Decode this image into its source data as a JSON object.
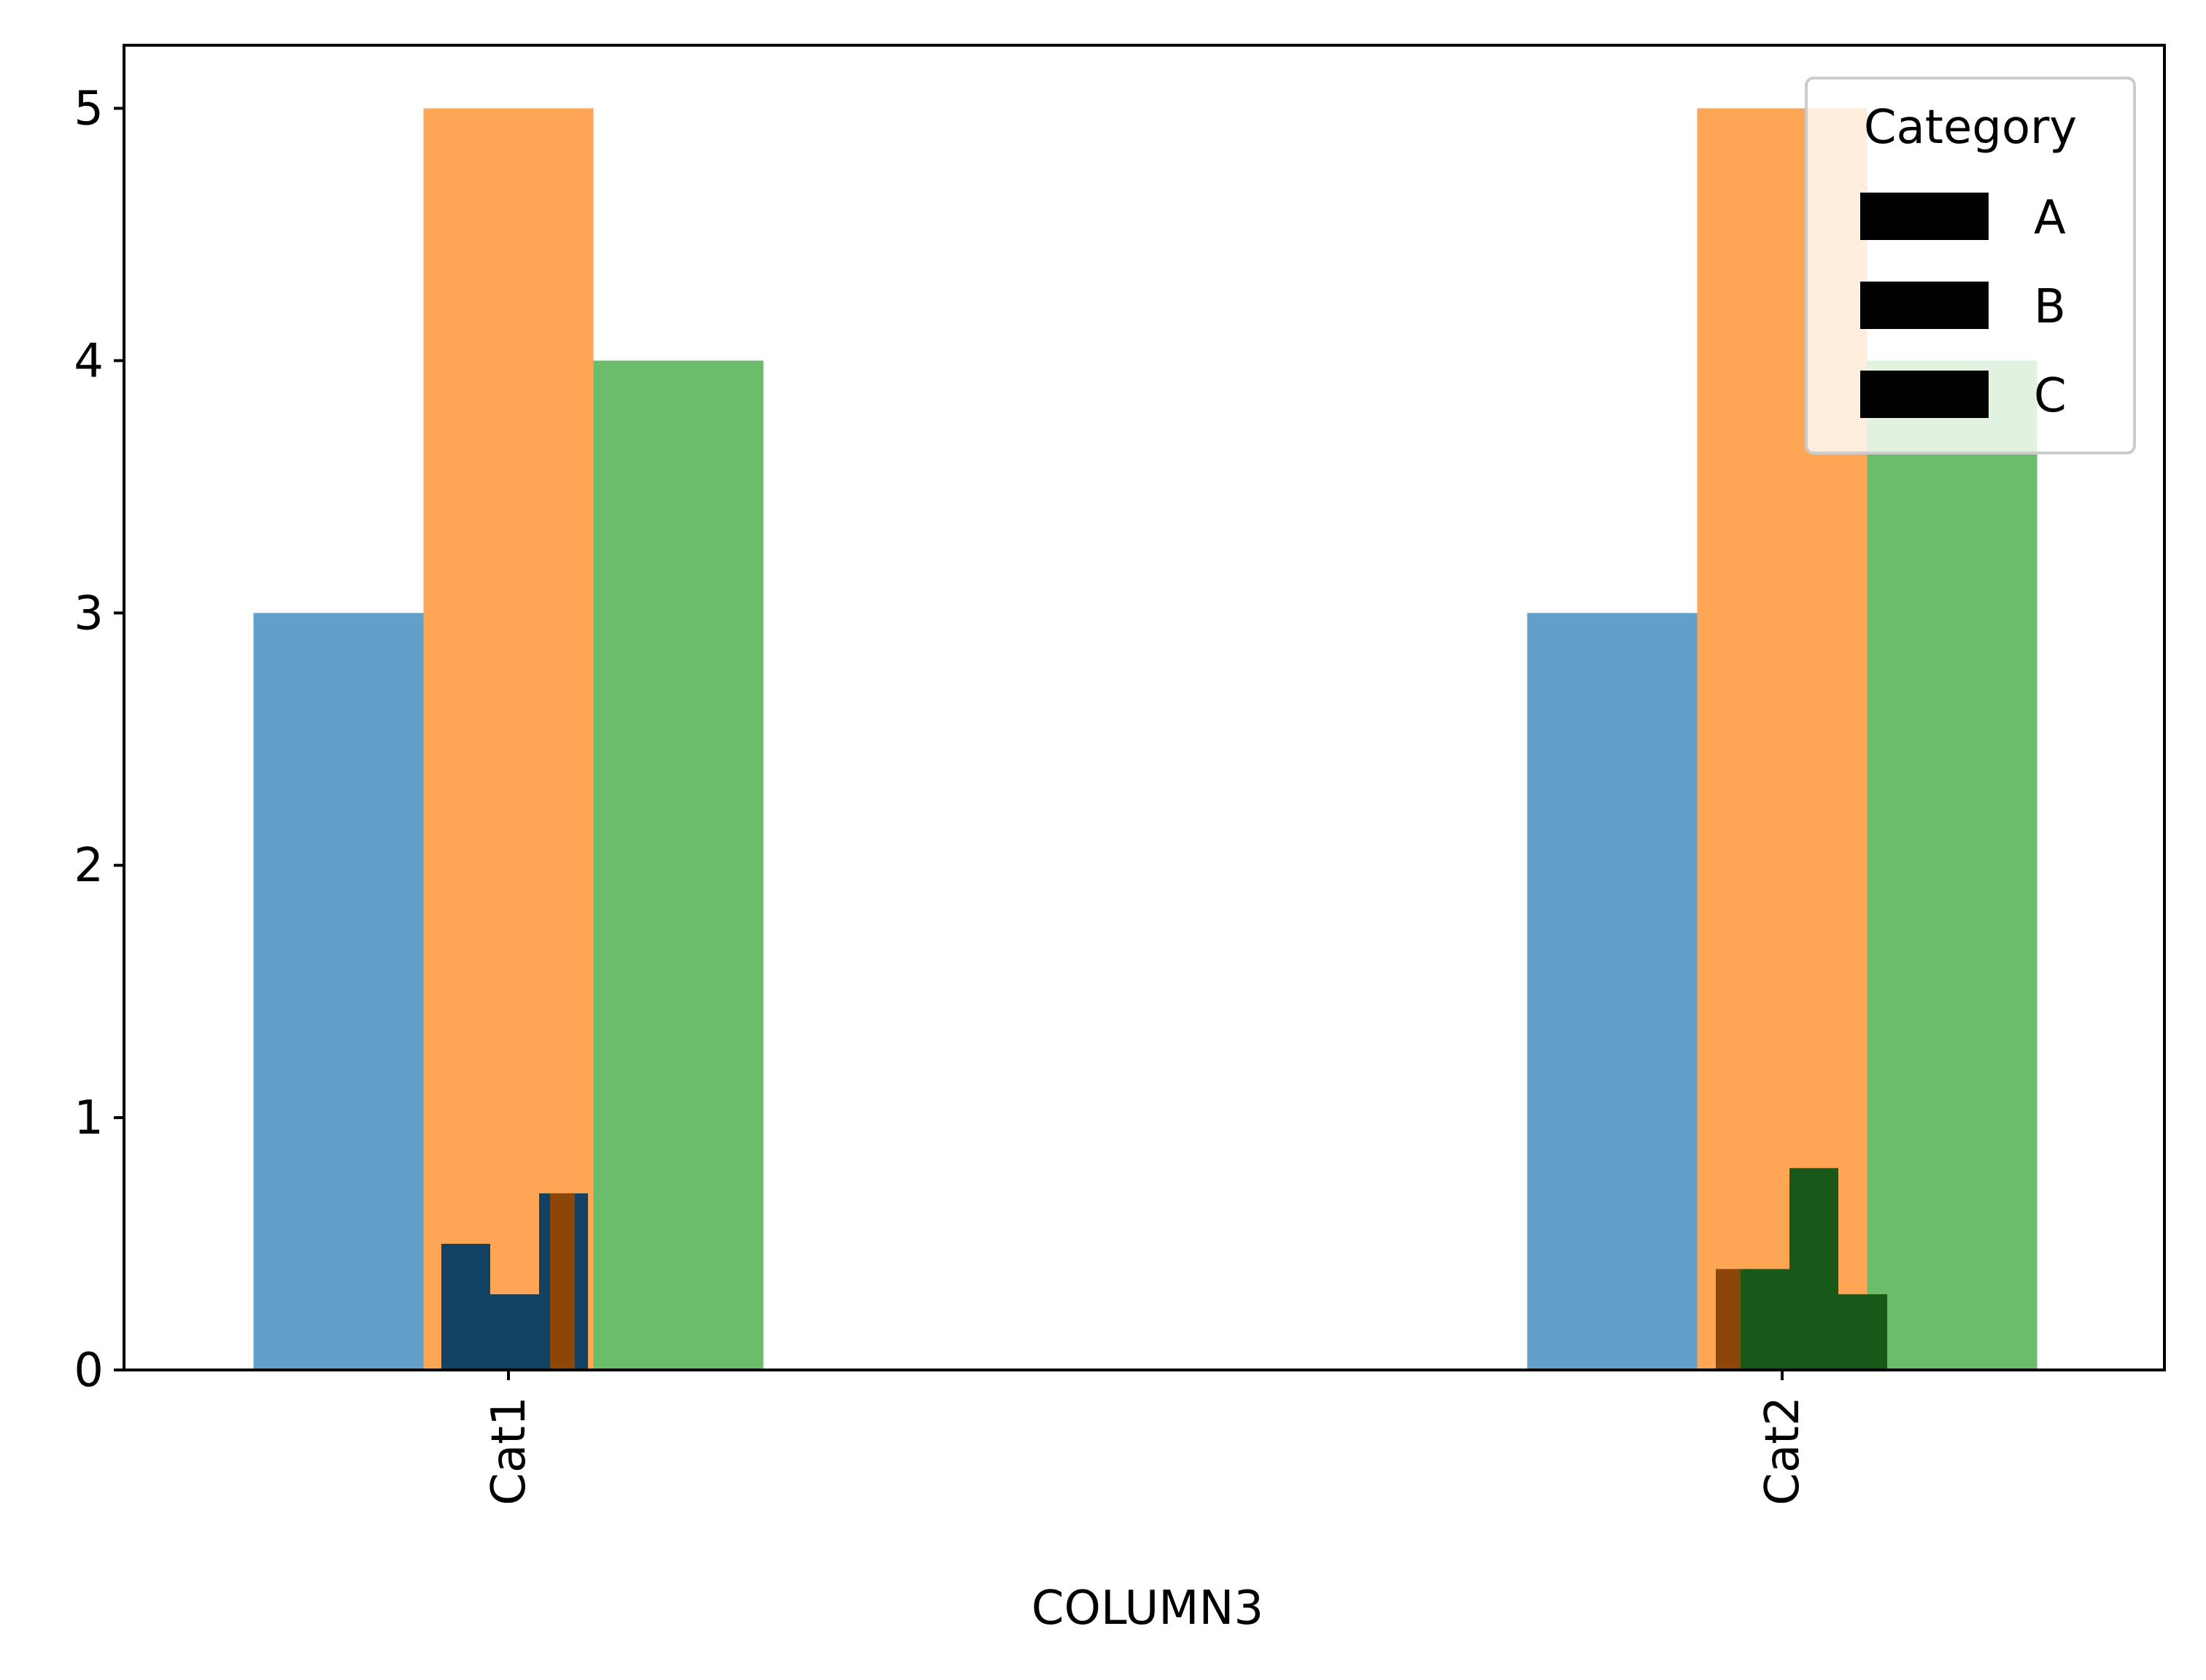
{
  "chart_data": {
    "type": "bar",
    "xlabel": "COLUMN3",
    "ylabel": "",
    "ylim": [
      0,
      5.25
    ],
    "yticks": [
      0,
      1,
      2,
      3,
      4,
      5
    ],
    "categories": [
      "Cat1",
      "Cat2"
    ],
    "series": [
      {
        "name": "A",
        "values": [
          3,
          3
        ],
        "color": "#1f77b4",
        "opacity": 0.7
      },
      {
        "name": "B",
        "values": [
          5,
          5
        ],
        "color": "#ff7f0e",
        "opacity": 0.7
      },
      {
        "name": "C",
        "values": [
          4,
          4
        ],
        "color": "#2ca02c",
        "opacity": 0.7
      }
    ],
    "overlay_steps": [
      {
        "category": "Cat1",
        "color": "#1f77b4",
        "heights": [
          0.5,
          0.3,
          0.7
        ]
      },
      {
        "category": "Cat1",
        "color": "#ff7f0e",
        "heights": [
          0.7
        ]
      },
      {
        "category": "Cat2",
        "color": "#ff7f0e",
        "heights": [
          0.4
        ]
      },
      {
        "category": "Cat2",
        "color": "#2ca02c",
        "heights": [
          0.4,
          0.8,
          0.3
        ]
      }
    ],
    "legend": {
      "title": "Category",
      "position": "top-right",
      "entries": [
        "A",
        "B",
        "C"
      ],
      "handle_color": "#000000"
    },
    "grid": false
  }
}
